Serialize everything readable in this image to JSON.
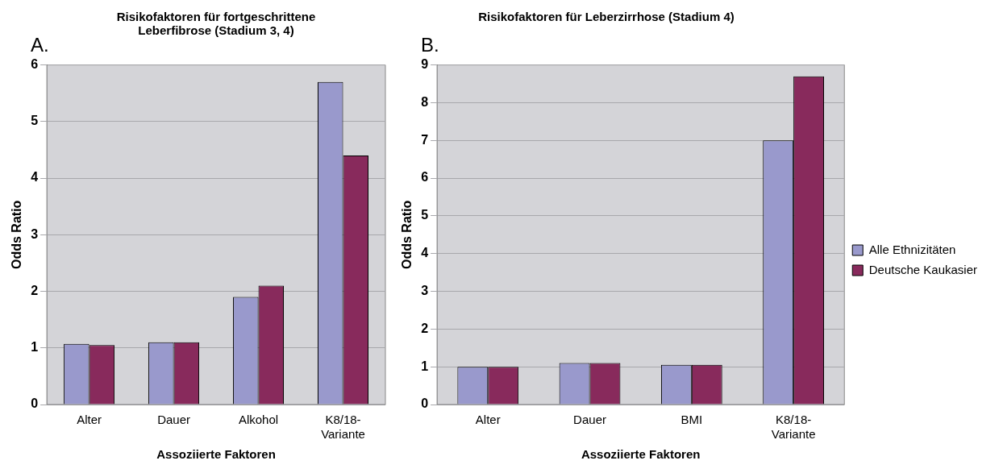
{
  "chart_data": [
    {
      "type": "bar",
      "title": "Risikofaktoren für fortgeschrittene Leberfibrose (Stadium 3, 4)",
      "xlabel": "Assoziierte Faktoren",
      "ylabel": "Odds Ratio",
      "annotations": [
        "A."
      ],
      "categories": [
        "Alter",
        "Dauer",
        "Alkohol",
        "K8/18-Variante"
      ],
      "series": [
        {
          "color": "#9999cc",
          "values": [
            1.07,
            1.1,
            1.9,
            5.7
          ]
        },
        {
          "color": "#882a5c",
          "values": [
            1.05,
            1.1,
            2.1,
            4.4
          ]
        }
      ],
      "ylim": [
        0,
        6
      ],
      "yticks": [
        0,
        1,
        2,
        3,
        4,
        5,
        6
      ],
      "grid": "y",
      "legend": false
    },
    {
      "type": "bar",
      "title": "Risikofaktoren für Leberzirrhose (Stadium 4)",
      "xlabel": "Assoziierte Faktoren",
      "ylabel": "Odds Ratio",
      "annotations": [
        "B."
      ],
      "categories": [
        "Alter",
        "Dauer",
        "BMI",
        "K8/18-Variante"
      ],
      "series": [
        {
          "name": "Alle Ethnizitäten",
          "color": "#9999cc",
          "values": [
            1.0,
            1.1,
            1.05,
            7.0
          ]
        },
        {
          "name": "Deutsche Kaukasier",
          "color": "#882a5c",
          "values": [
            1.0,
            1.1,
            1.05,
            8.7
          ]
        }
      ],
      "ylim": [
        0,
        9
      ],
      "yticks": [
        0,
        1,
        2,
        3,
        4,
        5,
        6,
        7,
        8,
        9
      ],
      "grid": "y",
      "legend": "right"
    }
  ]
}
